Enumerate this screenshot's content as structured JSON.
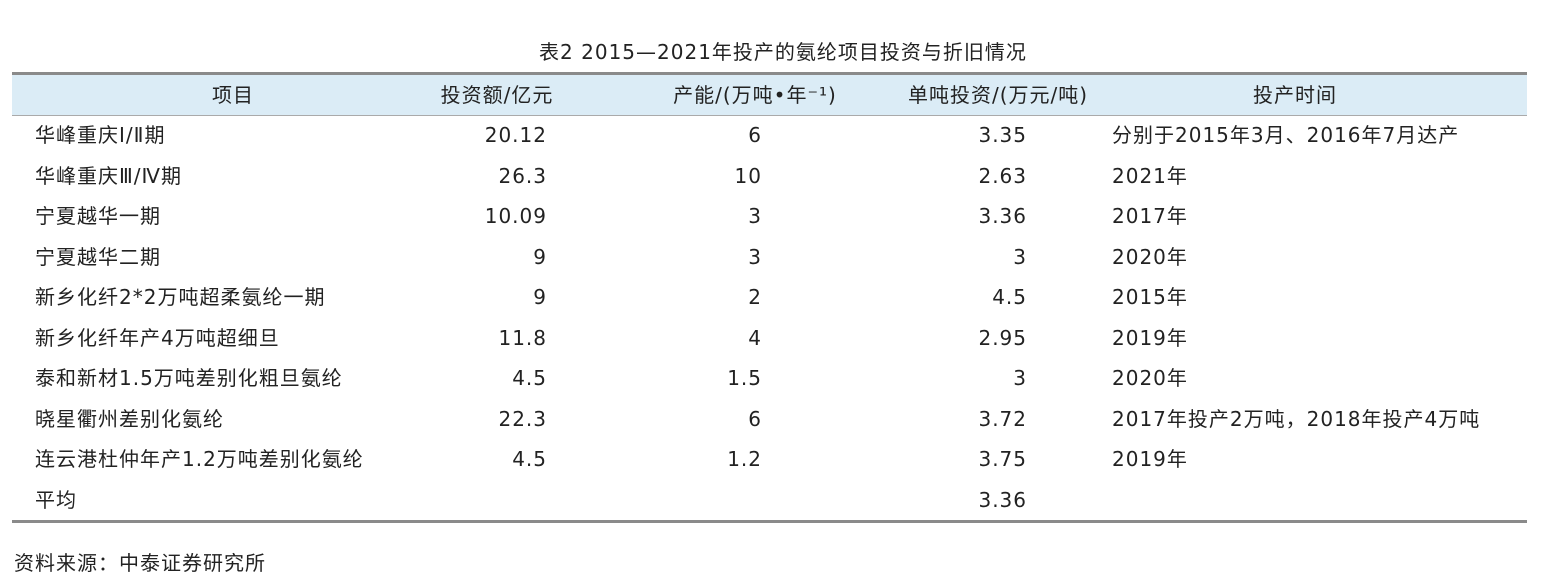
{
  "title": "表2  2015—2021年投产的氨纶项目投资与折旧情况",
  "table": {
    "header": [
      "项目",
      "投资额/亿元",
      "产能/(万吨•年⁻¹)",
      "单吨投资/(万元/吨)",
      "投产时间"
    ],
    "rows": [
      {
        "project": "华峰重庆Ⅰ/Ⅱ期",
        "investment": "20.12",
        "capacity": "6",
        "unit_investment": "3.35",
        "start": "分别于2015年3月、2016年7月达产"
      },
      {
        "project": "华峰重庆Ⅲ/Ⅳ期",
        "investment": "26.3",
        "capacity": "10",
        "unit_investment": "2.63",
        "start": "2021年"
      },
      {
        "project": "宁夏越华一期",
        "investment": "10.09",
        "capacity": "3",
        "unit_investment": "3.36",
        "start": "2017年"
      },
      {
        "project": "宁夏越华二期",
        "investment": "9",
        "capacity": "3",
        "unit_investment": "3",
        "start": "2020年"
      },
      {
        "project": "新乡化纤2*2万吨超柔氨纶一期",
        "investment": "9",
        "capacity": "2",
        "unit_investment": "4.5",
        "start": "2015年"
      },
      {
        "project": "新乡化纤年产4万吨超细旦",
        "investment": "11.8",
        "capacity": "4",
        "unit_investment": "2.95",
        "start": "2019年"
      },
      {
        "project": "泰和新材1.5万吨差别化粗旦氨纶",
        "investment": "4.5",
        "capacity": "1.5",
        "unit_investment": "3",
        "start": "2020年"
      },
      {
        "project": "晓星衢州差别化氨纶",
        "investment": "22.3",
        "capacity": "6",
        "unit_investment": "3.72",
        "start": "2017年投产2万吨，2018年投产4万吨"
      },
      {
        "project": "连云港杜仲年产1.2万吨差别化氨纶",
        "investment": "4.5",
        "capacity": "1.2",
        "unit_investment": "3.75",
        "start": "2019年"
      },
      {
        "project": "平均",
        "unit_investment": "3.36"
      }
    ]
  },
  "source": "资料来源：中泰证券研究所"
}
